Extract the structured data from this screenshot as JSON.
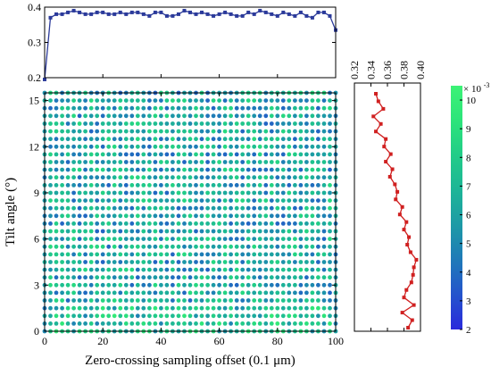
{
  "chart_data": [
    {
      "type": "line",
      "panel": "top",
      "xlabel": "",
      "ylabel": "",
      "xlim": [
        0,
        100
      ],
      "ylim": [
        0.2,
        0.4
      ],
      "yticks": [
        "0.2",
        "0.3",
        "0.4"
      ],
      "color": "#2b3a9a",
      "x": [
        0,
        2,
        4,
        6,
        8,
        10,
        12,
        14,
        16,
        18,
        20,
        22,
        24,
        26,
        28,
        30,
        32,
        34,
        36,
        38,
        40,
        42,
        44,
        46,
        48,
        50,
        52,
        54,
        56,
        58,
        60,
        62,
        64,
        66,
        68,
        70,
        72,
        74,
        76,
        78,
        80,
        82,
        84,
        86,
        88,
        90,
        92,
        94,
        96,
        98,
        100
      ],
      "values": [
        0.195,
        0.37,
        0.38,
        0.38,
        0.385,
        0.39,
        0.385,
        0.38,
        0.38,
        0.385,
        0.385,
        0.38,
        0.38,
        0.385,
        0.38,
        0.385,
        0.385,
        0.38,
        0.375,
        0.385,
        0.385,
        0.375,
        0.375,
        0.38,
        0.39,
        0.385,
        0.38,
        0.385,
        0.38,
        0.375,
        0.38,
        0.385,
        0.38,
        0.375,
        0.375,
        0.385,
        0.38,
        0.39,
        0.385,
        0.38,
        0.375,
        0.385,
        0.38,
        0.375,
        0.385,
        0.375,
        0.37,
        0.385,
        0.385,
        0.375,
        0.335
      ]
    },
    {
      "type": "heatmap",
      "panel": "main",
      "xlabel": "Zero-crossing sampling offset (0.1 μm)",
      "ylabel": "Tilt angle (°)",
      "xlim": [
        0,
        100
      ],
      "ylim": [
        0,
        15.5
      ],
      "xticks": [
        "0",
        "20",
        "40",
        "60",
        "80",
        "100"
      ],
      "yticks": [
        "0",
        "3",
        "6",
        "9",
        "12",
        "15"
      ],
      "grid": {
        "nx": 51,
        "ny": 32,
        "x_start": 0,
        "x_step": 2,
        "y_start": 0,
        "y_step": 0.5
      },
      "value_range": [
        0.002,
        0.0105
      ],
      "colorbar": {
        "multiplier": "× 10",
        "exponent": "-3",
        "ticks": [
          "2",
          "3",
          "4",
          "5",
          "6",
          "7",
          "8",
          "9",
          "10"
        ],
        "colors": [
          "#2a2adc",
          "#2454cc",
          "#1f7ab8",
          "#1d9aa6",
          "#1db597",
          "#22cc88",
          "#2ce47a",
          "#3cf276"
        ]
      }
    },
    {
      "type": "line",
      "panel": "right",
      "orientation": "vertical",
      "xlabel": "",
      "ylabel": "",
      "xlim": [
        0.32,
        0.4
      ],
      "ylim": [
        0,
        15.5
      ],
      "xticks": [
        "0.32",
        "0.34",
        "0.36",
        "0.38",
        "0.40"
      ],
      "color": "#d02020",
      "y": [
        0,
        0.5,
        1,
        1.5,
        2,
        2.5,
        3,
        3.5,
        4,
        4.5,
        5,
        5.5,
        6,
        6.5,
        7,
        7.5,
        8,
        8.5,
        9,
        9.5,
        10,
        10.5,
        11,
        11.5,
        12,
        12.5,
        13,
        13.5,
        14,
        14.5,
        15,
        15.5
      ],
      "values": [
        0.385,
        0.39,
        0.378,
        0.392,
        0.38,
        0.383,
        0.389,
        0.391,
        0.392,
        0.395,
        0.388,
        0.384,
        0.386,
        0.38,
        0.383,
        0.375,
        0.378,
        0.37,
        0.372,
        0.369,
        0.363,
        0.366,
        0.358,
        0.364,
        0.356,
        0.358,
        0.346,
        0.352,
        0.343,
        0.355,
        0.349,
        0.346
      ]
    }
  ]
}
